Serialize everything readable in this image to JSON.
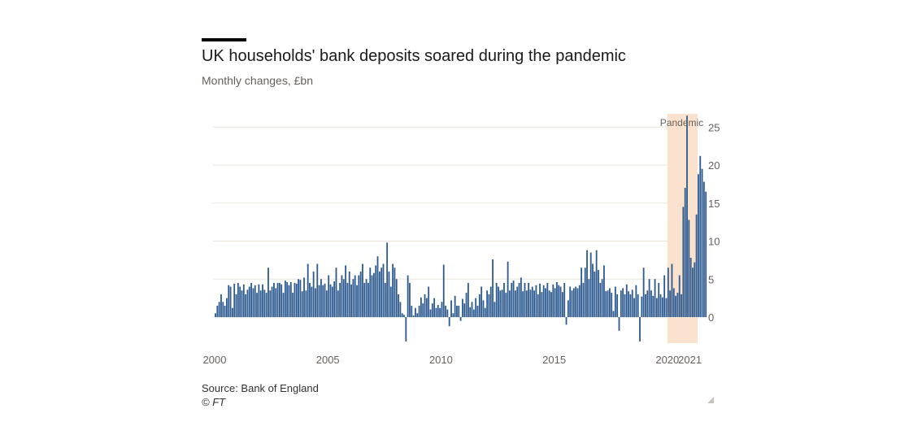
{
  "title": "UK households' bank deposits soared during the pandemic",
  "subtitle": "Monthly changes, £bn",
  "source": "Source: Bank of England",
  "credit": "© FT",
  "colors": {
    "bar": "#2c5a90",
    "shade": "#fbe2cf",
    "grid": "#e9e3db",
    "text": "#66605c"
  },
  "chart_data": {
    "type": "bar",
    "title": "UK households' bank deposits soared during the pandemic",
    "ylabel": "Monthly changes, £bn",
    "xlabel": "",
    "ylim": [
      -3.5,
      26
    ],
    "y_ticks": [
      0,
      5,
      10,
      15,
      20,
      25
    ],
    "x_tick_labels": [
      "2000",
      "2005",
      "2010",
      "2015",
      "2020",
      "2021"
    ],
    "x_tick_positions": [
      2000,
      2005,
      2010,
      2015,
      2020,
      2021
    ],
    "shaded_region": {
      "label": "Pandemic",
      "start": 2020.0,
      "end": 2021.4
    },
    "series": [
      {
        "name": "Monthly change in household bank deposits (£bn)",
        "start": "2000-01",
        "frequency": "monthly",
        "values": [
          0.5,
          1.5,
          2.0,
          3.0,
          2.0,
          1.5,
          2.5,
          4.2,
          4.0,
          1.2,
          4.4,
          3.0,
          4.5,
          4.0,
          3.5,
          4.3,
          3.0,
          3.6,
          4.0,
          4.5,
          3.8,
          4.2,
          3.2,
          4.3,
          3.5,
          4.3,
          3.6,
          3.2,
          6.5,
          3.5,
          4.0,
          4.5,
          3.8,
          4.5,
          4.5,
          4.3,
          3.2,
          4.8,
          4.6,
          4.2,
          4.6,
          3.2,
          4.5,
          4.4,
          5.0,
          4.9,
          3.4,
          5.2,
          3.5,
          7.0,
          4.5,
          4.0,
          6.0,
          3.8,
          7.0,
          4.2,
          5.0,
          4.2,
          4.4,
          3.5,
          5.5,
          4.3,
          4.0,
          4.7,
          6.5,
          3.5,
          4.5,
          5.5,
          5.0,
          6.8,
          4.5,
          6.0,
          4.3,
          5.0,
          5.5,
          4.2,
          5.5,
          6.0,
          7.0,
          4.5,
          5.0,
          4.5,
          6.5,
          5.5,
          5.8,
          6.8,
          8.0,
          6.0,
          6.5,
          7.0,
          4.5,
          9.8,
          6.0,
          4.0,
          7.0,
          6.5,
          5.0,
          3.0,
          2.0,
          0.5,
          0.3,
          -3.2,
          5.5,
          4.5,
          1.5,
          0.2,
          1.2,
          0.5,
          1.5,
          2.6,
          1.8,
          3.0,
          2.5,
          4.0,
          1.0,
          1.8,
          2.5,
          1.2,
          1.6,
          1.2,
          2.0,
          6.9,
          1.5,
          1.0,
          -1.2,
          2.2,
          0.5,
          2.8,
          1.5,
          1.5,
          -0.5,
          2.4,
          1.8,
          3.2,
          4.5,
          1.3,
          2.0,
          1.0,
          2.5,
          1.5,
          3.0,
          4.0,
          2.2,
          1.2,
          3.5,
          3.0,
          4.0,
          7.6,
          2.0,
          4.5,
          4.0,
          3.5,
          3.6,
          4.5,
          3.2,
          7.3,
          3.5,
          4.5,
          4.8,
          3.5,
          4.0,
          4.5,
          5.2,
          3.4,
          4.5,
          3.5,
          4.5,
          3.6,
          4.0,
          3.5,
          4.2,
          3.0,
          4.4,
          3.3,
          4.2,
          3.8,
          4.5,
          3.5,
          3.3,
          4.3,
          3.8,
          4.6,
          4.2,
          4.0,
          3.3,
          4.5,
          -1.0,
          2.2,
          4.0,
          3.5,
          3.8,
          4.0,
          3.8,
          4.2,
          6.5,
          4.5,
          6.5,
          8.8,
          5.0,
          8.5,
          7.0,
          6.0,
          8.8,
          6.2,
          4.5,
          5.0,
          6.8,
          3.4,
          3.5,
          3.8,
          3.2,
          0.8,
          4.0,
          3.0,
          -1.8,
          3.5,
          3.8,
          3.0,
          4.3,
          3.4,
          3.0,
          3.6,
          2.5,
          4.2,
          3.0,
          -3.2,
          2.7,
          6.5,
          3.0,
          3.5,
          5.0,
          3.5,
          2.8,
          5.0,
          2.5,
          4.5,
          3.0,
          2.6,
          5.5,
          2.5,
          6.5,
          3.5,
          7.0,
          3.8,
          2.8,
          3.2,
          5.5,
          3.0,
          14.5,
          17.0,
          26.5,
          12.8,
          7.8,
          6.5,
          7.2,
          13.5,
          18.8,
          21.2,
          19.5,
          17.8,
          16.5
        ]
      }
    ]
  }
}
